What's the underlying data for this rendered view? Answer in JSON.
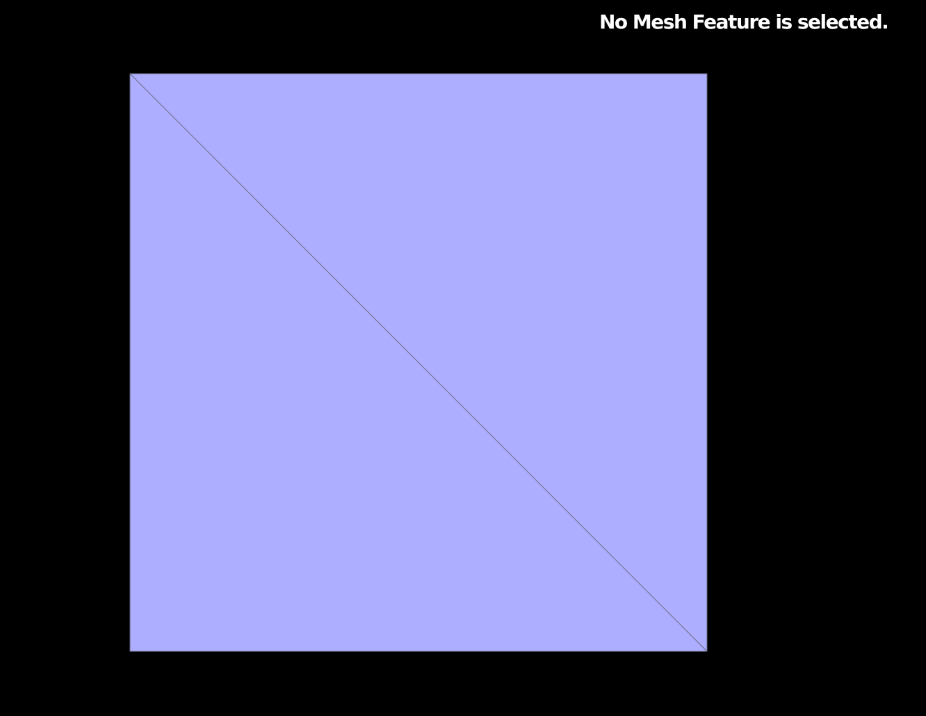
{
  "viewer": {
    "status_message": "No Mesh Feature is selected."
  },
  "mesh": {
    "fill_color": "#adaeff",
    "edge_color": "#6a6a80",
    "triangles": [
      "upper-right-triangle",
      "lower-left-triangle"
    ]
  }
}
